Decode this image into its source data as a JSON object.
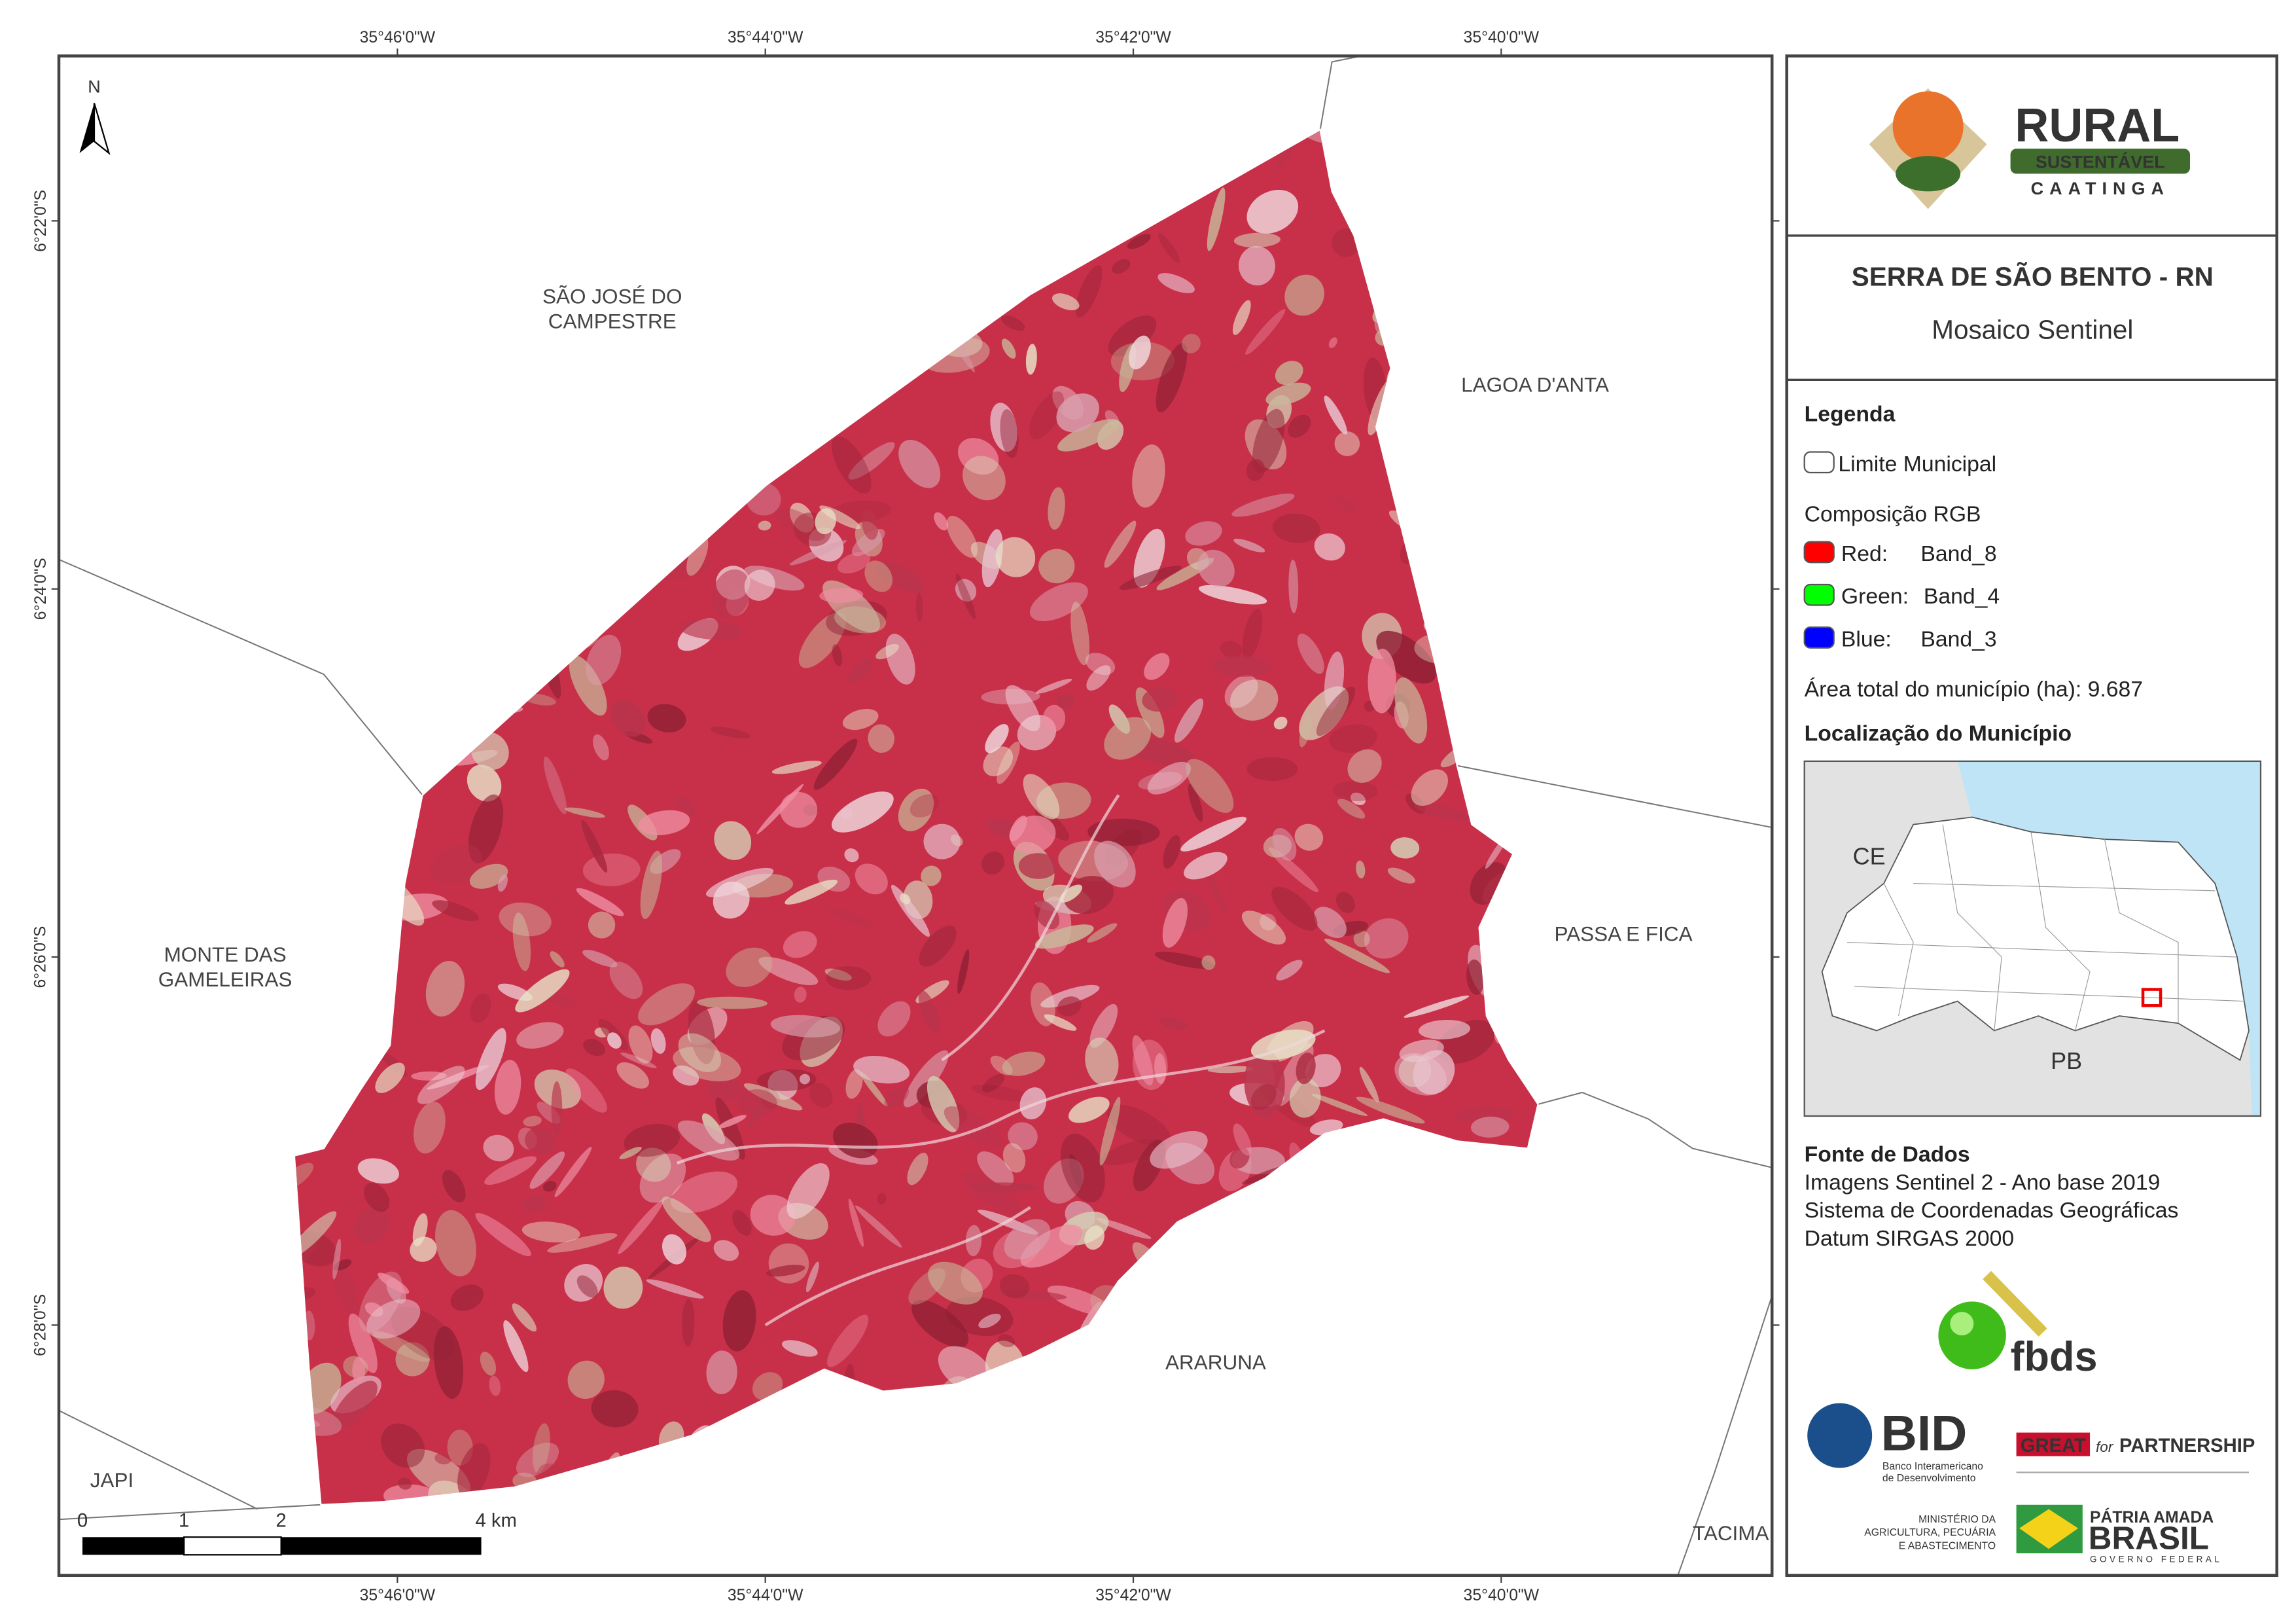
{
  "map": {
    "north": "N",
    "top_coords": [
      "35°46'0\"W",
      "35°44'0\"W",
      "35°42'0\"W",
      "35°40'0\"W"
    ],
    "bottom_coords": [
      "35°46'0\"W",
      "35°44'0\"W",
      "35°42'0\"W",
      "35°40'0\"W"
    ],
    "left_coords": [
      "6°22'0\"S",
      "6°24'0\"S",
      "6°26'0\"S",
      "6°28'0\"S"
    ],
    "places": [
      {
        "lines": [
          "SÃO JOSÉ DO",
          "CAMPESTRE"
        ]
      },
      {
        "lines": [
          "LAGOA D'ANTA"
        ]
      },
      {
        "lines": [
          "PASSA E FICA"
        ]
      },
      {
        "lines": [
          "MONTE DAS",
          "GAMELEIRAS"
        ]
      },
      {
        "lines": [
          "ARARUNA"
        ]
      },
      {
        "lines": [
          "JAPI"
        ]
      },
      {
        "lines": [
          "TACIMA"
        ]
      }
    ],
    "scale_bar": [
      "0",
      "1",
      "2",
      "4 km"
    ]
  },
  "panel": {
    "logo": {
      "title": "RURAL",
      "subtitle": "SUSTENTÁVEL",
      "tagline": "CAATINGA"
    },
    "title": "SERRA DE SÃO BENTO - RN",
    "subtitle": "Mosaico Sentinel",
    "legend": {
      "heading": "Legenda",
      "boundary": "Limite Municipal",
      "rgb_heading": "Composição RGB",
      "bands": [
        {
          "channel": "Red:",
          "band": "Band_8",
          "color": "#ff0000"
        },
        {
          "channel": "Green:",
          "band": "Band_4",
          "color": "#00ff00"
        },
        {
          "channel": "Blue:",
          "band": "Band_3",
          "color": "#0000ff"
        }
      ],
      "area": "Área total do município (ha): 9.687"
    },
    "location": {
      "heading": "Localização do Município",
      "labels": [
        "CE",
        "PB"
      ]
    },
    "sources": {
      "heading": "Fonte de Dados",
      "lines": [
        "Imagens Sentinel 2 - Ano base 2019",
        "Sistema de Coordenadas Geográficas",
        "Datum SIRGAS 2000"
      ]
    },
    "logos": {
      "fbds": "fbds",
      "bid": {
        "name": "BID",
        "caption": [
          "Banco Interamericano",
          "de Desenvolvimento"
        ]
      },
      "great": [
        "GREAT",
        "for",
        "PARTNERSHIP"
      ],
      "ministry": [
        "MINISTÉRIO DA",
        "AGRICULTURA, PECUÁRIA",
        "E ABASTECIMENTO"
      ],
      "brasil": [
        "PÁTRIA AMADA",
        "BRASIL",
        "GOVERNO FEDERAL"
      ]
    }
  }
}
